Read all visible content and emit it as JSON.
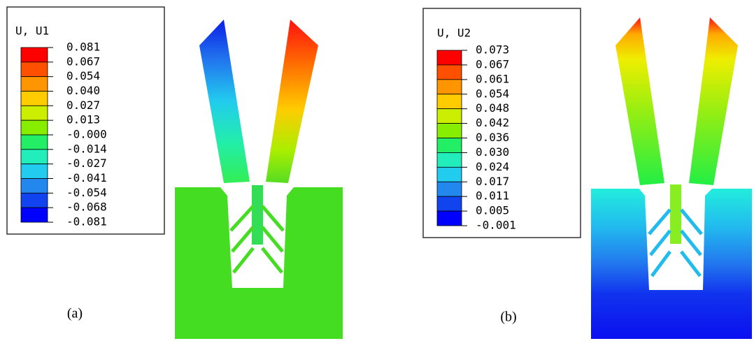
{
  "panels": [
    {
      "legend": {
        "title": "U, U1",
        "labels": [
          "0.081",
          "0.067",
          "0.054",
          "0.040",
          "0.027",
          "0.013",
          "-0.000",
          "-0.014",
          "-0.027",
          "-0.041",
          "-0.054",
          "-0.068",
          "-0.081"
        ]
      },
      "caption": "(a)"
    },
    {
      "legend": {
        "title": "U, U2",
        "labels": [
          "0.073",
          "0.067",
          "0.061",
          "0.054",
          "0.048",
          "0.042",
          "0.036",
          "0.030",
          "0.024",
          "0.017",
          "0.011",
          "0.005",
          "-0.001"
        ]
      },
      "caption": "(b)"
    }
  ]
}
